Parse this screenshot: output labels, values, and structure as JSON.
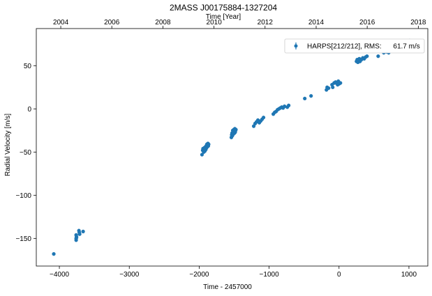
{
  "colors": {
    "series": "#1f77b4",
    "axis": "#000000",
    "legend_border": "#cccccc",
    "background": "#ffffff"
  },
  "chart_data": {
    "type": "scatter",
    "title": "2MASS J00175884-1327204",
    "xlabel": "Time - 2457000",
    "ylabel": "Radial Velocity [m/s]",
    "top_xlabel": "Time [Year]",
    "xlim": [
      -4330,
      1270
    ],
    "ylim": [
      -182,
      93
    ],
    "xticks": [
      -4000,
      -3000,
      -2000,
      -1000,
      0,
      1000
    ],
    "yticks": [
      -150,
      -100,
      -50,
      0,
      50
    ],
    "top_ticks": [
      {
        "label": "2004",
        "x": -3980
      },
      {
        "label": "2006",
        "x": -3250
      },
      {
        "label": "2008",
        "x": -2519
      },
      {
        "label": "2010",
        "x": -1788
      },
      {
        "label": "2012",
        "x": -1058
      },
      {
        "label": "2014",
        "x": -327
      },
      {
        "label": "2016",
        "x": 403
      },
      {
        "label": "2018",
        "x": 1134
      }
    ],
    "grid": false,
    "legend": {
      "placement": "top-right",
      "label": "HARPS[212/212], RMS:      61.7 m/s"
    },
    "series": [
      {
        "name": "HARPS[212/212]",
        "marker": "circle",
        "x": [
          -4080,
          -3760,
          -3760,
          -3760,
          -3755,
          -3755,
          -3720,
          -3715,
          -3710,
          -3660,
          -1960,
          -1950,
          -1945,
          -1940,
          -1935,
          -1930,
          -1925,
          -1920,
          -1915,
          -1910,
          -1905,
          -1900,
          -1895,
          -1890,
          -1885,
          -1880,
          -1875,
          -1870,
          -1865,
          -1540,
          -1535,
          -1530,
          -1525,
          -1520,
          -1515,
          -1510,
          -1505,
          -1500,
          -1495,
          -1490,
          -1485,
          -1480,
          -1475,
          -1220,
          -1200,
          -1180,
          -1160,
          -1140,
          -1120,
          -1100,
          -1080,
          -940,
          -920,
          -900,
          -880,
          -860,
          -840,
          -820,
          -800,
          -780,
          -740,
          -720,
          -490,
          -400,
          -180,
          -170,
          -150,
          -100,
          -90,
          -70,
          -50,
          -40,
          -20,
          -10,
          0,
          20,
          250,
          260,
          270,
          280,
          290,
          300,
          320,
          340,
          360,
          380,
          400,
          560,
          640,
          660,
          670,
          680,
          690,
          700,
          710,
          720,
          940,
          950,
          960,
          970,
          980,
          990,
          1000,
          1010,
          1020
        ],
        "y": [
          -168,
          -146,
          -150,
          -152,
          -148,
          -149,
          -141,
          -143,
          -145,
          -142,
          -53,
          -48,
          -46,
          -47,
          -50,
          -48,
          -45,
          -49,
          -46,
          -44,
          -47,
          -43,
          -45,
          -41,
          -44,
          -42,
          -40,
          -43,
          -41,
          -33,
          -30,
          -28,
          -31,
          -25,
          -27,
          -29,
          -24,
          -26,
          -28,
          -23,
          -27,
          -25,
          -24,
          -20,
          -17,
          -15,
          -13,
          -16,
          -14,
          -12,
          -10,
          -6,
          -4,
          -3,
          -1,
          0,
          1,
          2,
          1,
          3,
          2,
          4,
          12,
          15,
          22,
          25,
          24,
          28,
          25,
          30,
          31,
          30,
          28,
          32,
          29,
          30,
          55,
          57,
          54,
          56,
          58,
          55,
          57,
          59,
          58,
          60,
          61,
          61,
          65,
          72,
          68,
          66,
          70,
          67,
          65,
          69,
          73,
          75,
          77,
          74,
          78,
          72,
          76,
          79,
          75
        ]
      }
    ]
  }
}
